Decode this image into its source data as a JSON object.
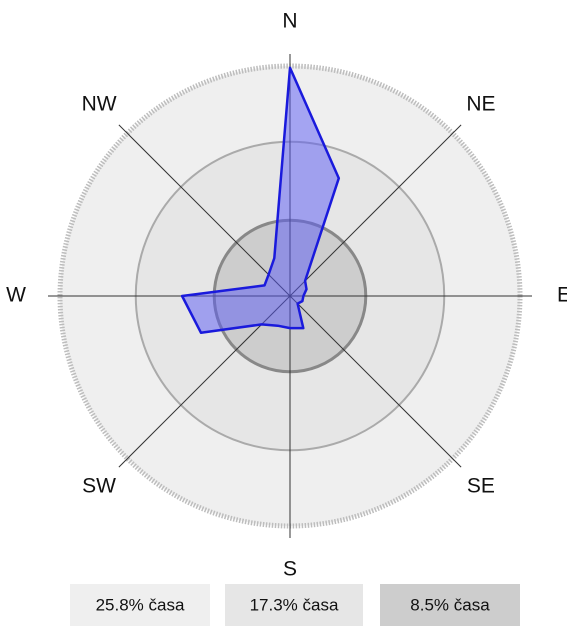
{
  "chart_data": {
    "type": "radar",
    "categories": [
      "N",
      null,
      "NE",
      null,
      "E",
      null,
      "SE",
      null,
      "S",
      null,
      "SW",
      null,
      "W",
      null,
      "NW",
      null
    ],
    "values": [
      25.6,
      14.3,
      2.4,
      2.0,
      1.5,
      1.5,
      1.2,
      3.9,
      3.6,
      3.6,
      4.5,
      10.8,
      12.1,
      3.1,
      3.4,
      4.6
    ],
    "color": "#1a1adc",
    "rlim": [
      0,
      25.8
    ],
    "rticks": [
      {
        "value": 25.8,
        "label": "25.8% časa"
      },
      {
        "value": 17.3,
        "label": "17.3% časa"
      },
      {
        "value": 8.5,
        "label": "8.5% časa"
      }
    ],
    "ring_colors": [
      "#efefef",
      "#e6e6e6",
      "#cdcdcd"
    ]
  }
}
